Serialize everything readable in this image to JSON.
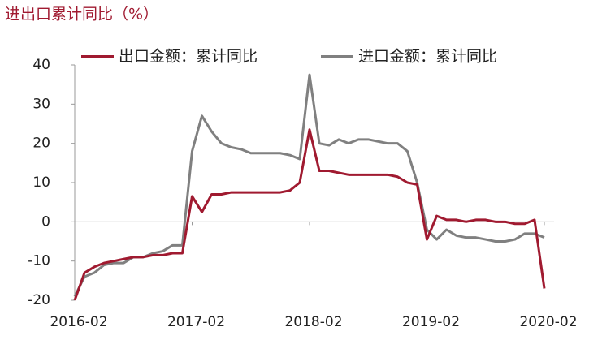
{
  "chart_data": {
    "type": "line",
    "title": "进出口累计同比（%）",
    "categories": [
      "2016-02",
      null,
      null,
      null,
      null,
      null,
      null,
      null,
      null,
      null,
      null,
      null,
      "2017-02",
      null,
      null,
      null,
      null,
      null,
      null,
      null,
      null,
      null,
      null,
      null,
      "2018-02",
      null,
      null,
      null,
      null,
      null,
      null,
      null,
      null,
      null,
      null,
      null,
      "2019-02",
      null,
      null,
      null,
      null,
      null,
      null,
      null,
      null,
      null,
      null,
      null,
      "2020-02"
    ],
    "series": [
      {
        "name": "出口金额：累计同比",
        "color": "#a01a30",
        "values": [
          -20,
          -13,
          -11.5,
          -10.5,
          -10,
          -9.5,
          -9,
          -9,
          -8.5,
          -8.5,
          -8,
          -8,
          6.5,
          2.5,
          7,
          7,
          7.5,
          7.5,
          7.5,
          7.5,
          7.5,
          7.5,
          8,
          10,
          23.5,
          13,
          13,
          12.5,
          12,
          12,
          12,
          12,
          12,
          11.5,
          10,
          9.5,
          -4.5,
          1.5,
          0.5,
          0.5,
          0,
          0.5,
          0.5,
          0,
          0,
          -0.5,
          -0.5,
          0.5,
          -17
        ]
      },
      {
        "name": "进口金额：累计同比",
        "color": "#808080",
        "values": [
          -19,
          -14,
          -13,
          -11,
          -10.5,
          -10.5,
          -9,
          -9,
          -8,
          -7.5,
          -6,
          -6,
          18,
          27,
          23,
          20,
          19,
          18.5,
          17.5,
          17.5,
          17.5,
          17.5,
          17,
          16,
          37.5,
          20,
          19.5,
          21,
          20,
          21,
          21,
          20.5,
          20,
          20,
          18,
          10,
          -2,
          -4.5,
          -2,
          -3.5,
          -4,
          -4,
          -4.5,
          -5,
          -5,
          -4.5,
          -3,
          -3,
          -4
        ]
      }
    ],
    "ylim": [
      -20,
      40
    ],
    "yticks": [
      -20,
      -10,
      0,
      10,
      20,
      30,
      40
    ]
  }
}
